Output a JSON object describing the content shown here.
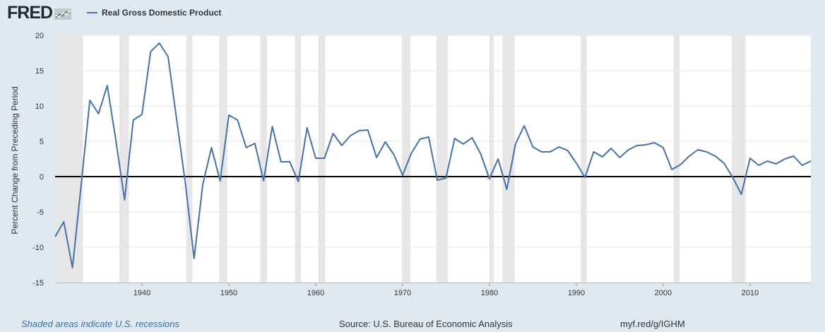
{
  "header": {
    "logo_text": "FRED",
    "legend_label": "Real Gross Domestic Product"
  },
  "footer": {
    "recession_note": "Shaded areas indicate U.S. recessions",
    "source": "Source: U.S. Bureau of Economic Analysis",
    "link": "myf.red/g/IGHM"
  },
  "colors": {
    "background": "#e1e9f0",
    "plot_area": "#ffffff",
    "series": "#4572a7",
    "recession": "#e6e6e6",
    "zero_line": "#000000"
  },
  "chart_data": {
    "type": "line",
    "title": "",
    "xlabel": "",
    "ylabel": "Percent Change from Preceding Period",
    "xlim": [
      1930,
      2017
    ],
    "ylim": [
      -15,
      20
    ],
    "y_ticks": [
      -15,
      -10,
      -5,
      0,
      5,
      10,
      15,
      20
    ],
    "x_ticks": [
      1940,
      1950,
      1960,
      1970,
      1980,
      1990,
      2000,
      2010
    ],
    "grid": true,
    "legend_position": "top-left",
    "recessions": [
      [
        1930,
        1933.2
      ],
      [
        1937.4,
        1938.5
      ],
      [
        1945.1,
        1945.8
      ],
      [
        1948.9,
        1949.8
      ],
      [
        1953.6,
        1954.4
      ],
      [
        1957.6,
        1958.3
      ],
      [
        1960.3,
        1961.1
      ],
      [
        1969.9,
        1970.9
      ],
      [
        1973.9,
        1975.2
      ],
      [
        1980.0,
        1980.5
      ],
      [
        1981.5,
        1982.9
      ],
      [
        1990.5,
        1991.2
      ],
      [
        2001.2,
        2001.9
      ],
      [
        2007.9,
        2009.5
      ]
    ],
    "series": [
      {
        "name": "Real Gross Domestic Product",
        "x": [
          1930,
          1931,
          1932,
          1933,
          1934,
          1935,
          1936,
          1937,
          1938,
          1939,
          1940,
          1941,
          1942,
          1943,
          1944,
          1945,
          1946,
          1947,
          1948,
          1949,
          1950,
          1951,
          1952,
          1953,
          1954,
          1955,
          1956,
          1957,
          1958,
          1959,
          1960,
          1961,
          1962,
          1963,
          1964,
          1965,
          1966,
          1967,
          1968,
          1969,
          1970,
          1971,
          1972,
          1973,
          1974,
          1975,
          1976,
          1977,
          1978,
          1979,
          1980,
          1981,
          1982,
          1983,
          1984,
          1985,
          1986,
          1987,
          1988,
          1989,
          1990,
          1991,
          1992,
          1993,
          1994,
          1995,
          1996,
          1997,
          1998,
          1999,
          2000,
          2001,
          2002,
          2003,
          2004,
          2005,
          2006,
          2007,
          2008,
          2009,
          2010,
          2011,
          2012,
          2013,
          2014,
          2015,
          2016,
          2017
        ],
        "values": [
          -8.5,
          -6.4,
          -12.9,
          -1.2,
          10.8,
          8.9,
          12.9,
          5.1,
          -3.3,
          8.0,
          8.8,
          17.7,
          18.9,
          17.0,
          8.0,
          -1.0,
          -11.6,
          -1.1,
          4.1,
          -0.6,
          8.7,
          8.0,
          4.1,
          4.7,
          -0.6,
          7.1,
          2.1,
          2.1,
          -0.7,
          6.9,
          2.6,
          2.6,
          6.1,
          4.4,
          5.8,
          6.5,
          6.6,
          2.7,
          4.9,
          3.1,
          0.2,
          3.3,
          5.3,
          5.6,
          -0.5,
          -0.2,
          5.4,
          4.6,
          5.5,
          3.2,
          -0.3,
          2.5,
          -1.8,
          4.6,
          7.2,
          4.2,
          3.5,
          3.5,
          4.2,
          3.7,
          1.9,
          -0.1,
          3.5,
          2.8,
          4.0,
          2.7,
          3.8,
          4.4,
          4.5,
          4.8,
          4.1,
          1.0,
          1.7,
          2.9,
          3.8,
          3.5,
          2.9,
          1.9,
          -0.1,
          -2.5,
          2.6,
          1.6,
          2.2,
          1.8,
          2.5,
          2.9,
          1.6,
          2.2
        ]
      }
    ]
  }
}
